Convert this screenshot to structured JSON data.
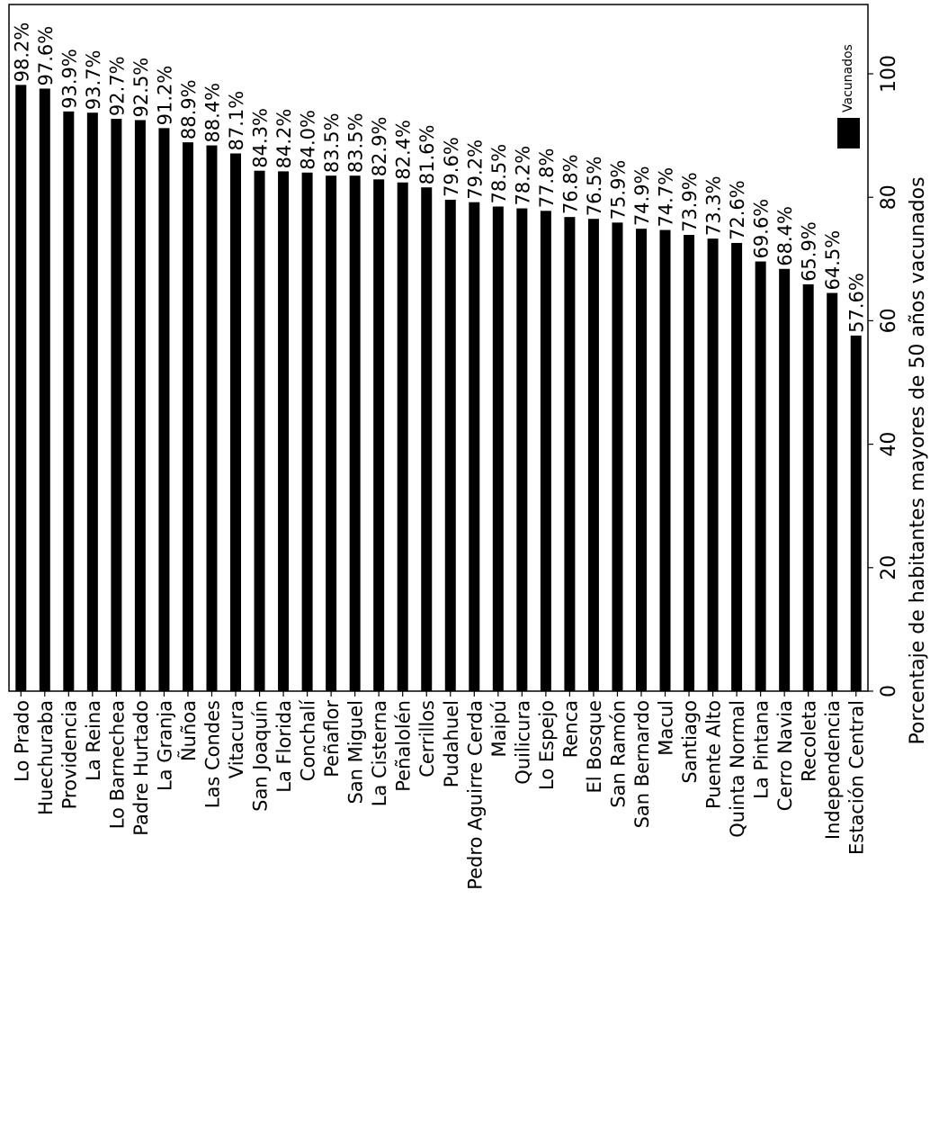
{
  "chart_data": {
    "type": "bar",
    "orientation": "rotated-90-clockwise",
    "categories": [
      "Lo Prado",
      "Huechuraba",
      "Providencia",
      "La Reina",
      "Lo Barnechea",
      "Padre Hurtado",
      "La Granja",
      "Ñuñoa",
      "Las Condes",
      "Vitacura",
      "San Joaquín",
      "La Florida",
      "Conchalí",
      "Peñaflor",
      "San Miguel",
      "La Cisterna",
      "Peñalolén",
      "Cerrillos",
      "Pudahuel",
      "Pedro Aguirre Cerda",
      "Maipú",
      "Quilicura",
      "Lo Espejo",
      "Renca",
      "El Bosque",
      "San Ramón",
      "San Bernardo",
      "Macul",
      "Santiago",
      "Puente Alto",
      "Quinta Normal",
      "La Pintana",
      "Cerro Navia",
      "Recoleta",
      "Independencia",
      "Estación Central"
    ],
    "series": [
      {
        "name": "Vacunados",
        "values": [
          98.2,
          97.6,
          93.9,
          93.7,
          92.7,
          92.5,
          91.2,
          88.9,
          88.4,
          87.1,
          84.3,
          84.2,
          84.0,
          83.5,
          83.5,
          82.9,
          82.4,
          81.6,
          79.6,
          79.2,
          78.5,
          78.2,
          77.8,
          76.8,
          76.5,
          75.9,
          74.9,
          74.7,
          73.9,
          73.3,
          72.6,
          69.6,
          68.4,
          65.9,
          64.5,
          57.6
        ],
        "labels": [
          "98.2%",
          "97.6%",
          "93.9%",
          "93.7%",
          "92.7%",
          "92.5%",
          "91.2%",
          "88.9%",
          "88.4%",
          "87.1%",
          "84.3%",
          "84.2%",
          "84.0%",
          "83.5%",
          "83.5%",
          "82.9%",
          "82.4%",
          "81.6%",
          "79.6%",
          "79.2%",
          "78.5%",
          "78.2%",
          "77.8%",
          "76.8%",
          "76.5%",
          "75.9%",
          "74.9%",
          "74.7%",
          "73.9%",
          "73.3%",
          "72.6%",
          "69.6%",
          "68.4%",
          "65.9%",
          "64.5%",
          "57.6%"
        ],
        "color": "#000000"
      }
    ],
    "ylabel": "Porcentaje de habitantes mayores de 50 años vacunados",
    "xlabel": "",
    "title": "",
    "ylim": [
      0,
      110
    ],
    "yticks": [
      0,
      20,
      40,
      60,
      80,
      100
    ],
    "grid": false,
    "legend": {
      "position": "top-right",
      "entries": [
        "Vacunados"
      ]
    }
  }
}
